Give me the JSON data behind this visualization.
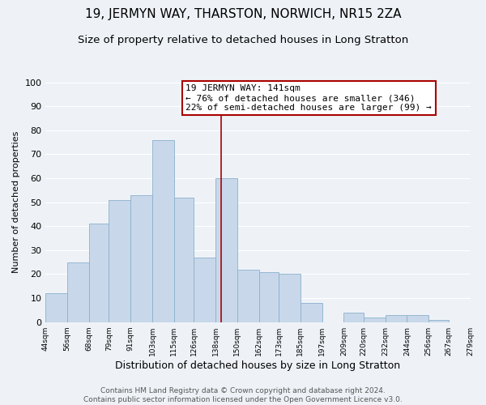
{
  "title": "19, JERMYN WAY, THARSTON, NORWICH, NR15 2ZA",
  "subtitle": "Size of property relative to detached houses in Long Stratton",
  "xlabel": "Distribution of detached houses by size in Long Stratton",
  "ylabel": "Number of detached properties",
  "bin_edges": [
    44,
    56,
    68,
    79,
    91,
    103,
    115,
    126,
    138,
    150,
    162,
    173,
    185,
    197,
    209,
    220,
    232,
    244,
    256,
    267,
    279
  ],
  "bin_counts": [
    12,
    25,
    41,
    51,
    53,
    76,
    52,
    27,
    60,
    22,
    21,
    20,
    8,
    0,
    4,
    2,
    3,
    3,
    1,
    0,
    1
  ],
  "bar_color": "#c8d8ea",
  "bar_edgecolor": "#8ab0cc",
  "vline_x": 141,
  "vline_color": "#aa0000",
  "ylim": [
    0,
    100
  ],
  "yticks": [
    0,
    10,
    20,
    30,
    40,
    50,
    60,
    70,
    80,
    90,
    100
  ],
  "tick_labels": [
    "44sqm",
    "56sqm",
    "68sqm",
    "79sqm",
    "91sqm",
    "103sqm",
    "115sqm",
    "126sqm",
    "138sqm",
    "150sqm",
    "162sqm",
    "173sqm",
    "185sqm",
    "197sqm",
    "209sqm",
    "220sqm",
    "232sqm",
    "244sqm",
    "256sqm",
    "267sqm",
    "279sqm"
  ],
  "annotation_title": "19 JERMYN WAY: 141sqm",
  "annotation_line1": "← 76% of detached houses are smaller (346)",
  "annotation_line2": "22% of semi-detached houses are larger (99) →",
  "footer_line1": "Contains HM Land Registry data © Crown copyright and database right 2024.",
  "footer_line2": "Contains public sector information licensed under the Open Government Licence v3.0.",
  "bg_color": "#eef2f7",
  "grid_color": "#ffffff",
  "title_fontsize": 11,
  "subtitle_fontsize": 9.5,
  "xlabel_fontsize": 9,
  "ylabel_fontsize": 8,
  "tick_fontsize": 6.5,
  "footer_fontsize": 6.5,
  "ann_fontsize": 8
}
